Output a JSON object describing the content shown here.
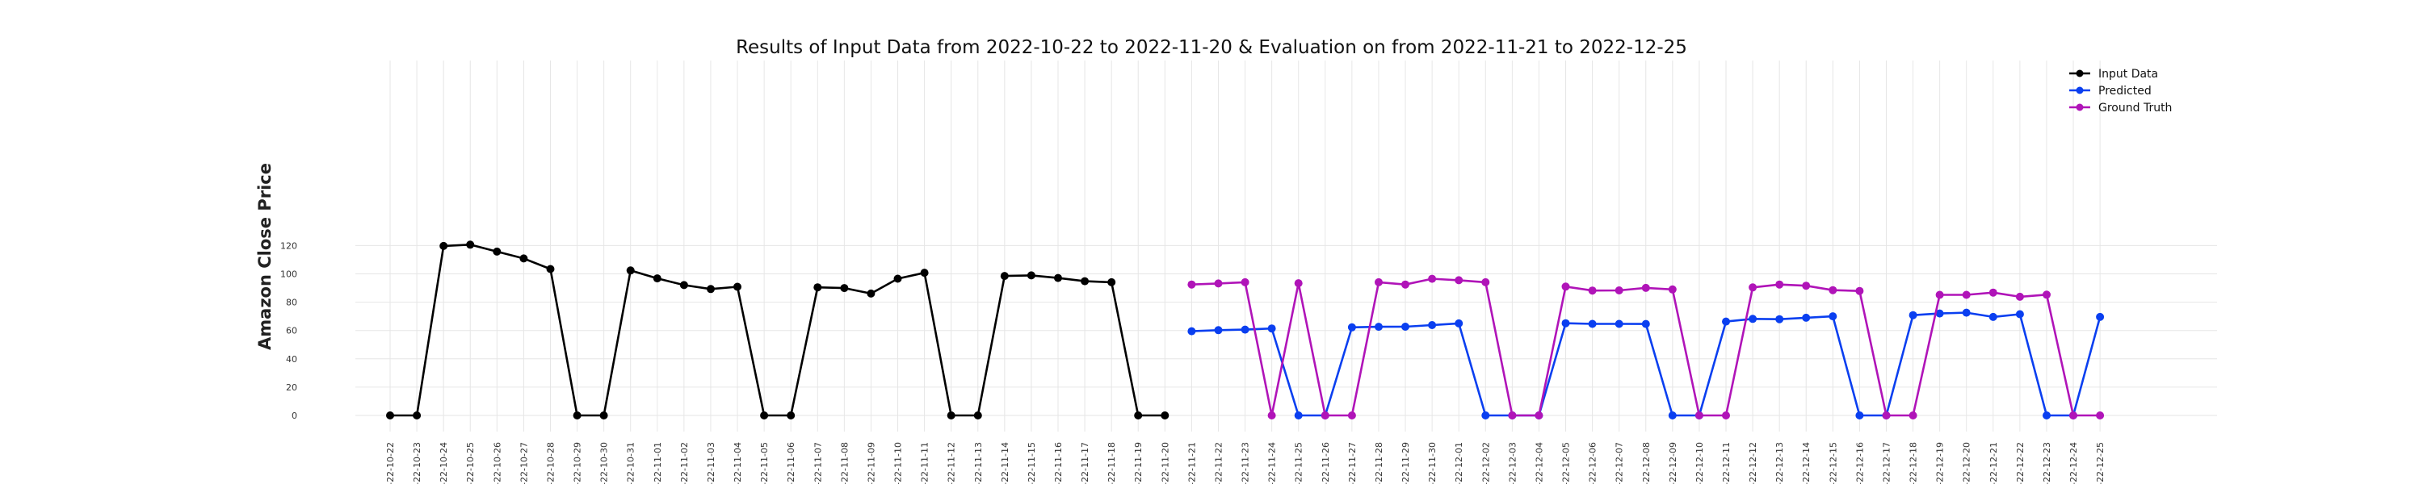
{
  "chart_data": {
    "type": "line",
    "title": "Results of Input Data from 2022-10-22 to 2022-11-20 & Evaluation on from 2022-11-21 to 2022-12-25",
    "xlabel": "",
    "ylabel": "Amazon Close Price",
    "ylim": [
      -5,
      126
    ],
    "yticks": [
      0,
      20,
      40,
      60,
      80,
      100,
      120
    ],
    "grid": true,
    "legend_position": "top-right",
    "x": [
      "2022-10-22",
      "2022-10-23",
      "2022-10-24",
      "2022-10-25",
      "2022-10-26",
      "2022-10-27",
      "2022-10-28",
      "2022-10-29",
      "2022-10-30",
      "2022-10-31",
      "2022-11-01",
      "2022-11-02",
      "2022-11-03",
      "2022-11-04",
      "2022-11-05",
      "2022-11-06",
      "2022-11-07",
      "2022-11-08",
      "2022-11-09",
      "2022-11-10",
      "2022-11-11",
      "2022-11-12",
      "2022-11-13",
      "2022-11-14",
      "2022-11-15",
      "2022-11-16",
      "2022-11-17",
      "2022-11-18",
      "2022-11-19",
      "2022-11-20",
      "2022-11-21",
      "2022-11-22",
      "2022-11-23",
      "2022-11-24",
      "2022-11-25",
      "2022-11-26",
      "2022-11-27",
      "2022-11-28",
      "2022-11-29",
      "2022-11-30",
      "2022-12-01",
      "2022-12-02",
      "2022-12-03",
      "2022-12-04",
      "2022-12-05",
      "2022-12-06",
      "2022-12-07",
      "2022-12-08",
      "2022-12-09",
      "2022-12-10",
      "2022-12-11",
      "2022-12-12",
      "2022-12-13",
      "2022-12-14",
      "2022-12-15",
      "2022-12-16",
      "2022-12-17",
      "2022-12-18",
      "2022-12-19",
      "2022-12-20",
      "2022-12-21",
      "2022-12-22",
      "2022-12-23",
      "2022-12-24",
      "2022-12-25"
    ],
    "x_tick_labels": [
      "-22-10-22",
      "-22-10-23",
      "-22-10-24",
      "-22-10-25",
      "-22-10-26",
      "-22-10-27",
      "-22-10-28",
      "-22-10-29",
      "-22-10-30",
      "-22-10-31",
      "-22-11-01",
      "-22-11-02",
      "-22-11-03",
      "-22-11-04",
      "-22-11-05",
      "-22-11-06",
      "-22-11-07",
      "-22-11-08",
      "-22-11-09",
      "-22-11-10",
      "-22-11-11",
      "-22-11-12",
      "-22-11-13",
      "-22-11-14",
      "-22-11-15",
      "-22-11-16",
      "-22-11-17",
      "-22-11-18",
      "-22-11-19",
      "-22-11-20",
      "-22-11-21",
      "-22-11-22",
      "-22-11-23",
      "-22-11-24",
      "-22-11-25",
      "-22-11-26",
      "-22-11-27",
      "-22-11-28",
      "-22-11-29",
      "-22-11-30",
      "-22-12-01",
      "-22-12-02",
      "-22-12-03",
      "-22-12-04",
      "-22-12-05",
      "-22-12-06",
      "-22-12-07",
      "-22-12-08",
      "-22-12-09",
      "-22-12-10",
      "-22-12-11",
      "-22-12-12",
      "-22-12-13",
      "-22-12-14",
      "-22-12-15",
      "-22-12-16",
      "-22-12-17",
      "-22-12-18",
      "-22-12-19",
      "-22-12-20",
      "-22-12-21",
      "-22-12-22",
      "-22-12-23",
      "-22-12-24",
      "-22-12-25"
    ],
    "series": [
      {
        "name": "Input Data",
        "color": "#000000",
        "x": [
          "2022-10-22",
          "2022-10-23",
          "2022-10-24",
          "2022-10-25",
          "2022-10-26",
          "2022-10-27",
          "2022-10-28",
          "2022-10-29",
          "2022-10-30",
          "2022-10-31",
          "2022-11-01",
          "2022-11-02",
          "2022-11-03",
          "2022-11-04",
          "2022-11-05",
          "2022-11-06",
          "2022-11-07",
          "2022-11-08",
          "2022-11-09",
          "2022-11-10",
          "2022-11-11",
          "2022-11-12",
          "2022-11-13",
          "2022-11-14",
          "2022-11-15",
          "2022-11-16",
          "2022-11-17",
          "2022-11-18",
          "2022-11-19",
          "2022-11-20"
        ],
        "values": [
          0,
          0,
          119.7,
          120.6,
          115.7,
          110.9,
          103.4,
          0,
          0,
          102.4,
          96.8,
          92.1,
          89.3,
          90.9,
          0,
          0,
          90.5,
          90.0,
          86.1,
          96.6,
          100.8,
          0,
          0,
          98.5,
          98.9,
          97.1,
          94.8,
          94.1,
          0,
          0
        ]
      },
      {
        "name": "Predicted",
        "color": "#0a3ff0",
        "x": [
          "2022-11-21",
          "2022-11-22",
          "2022-11-23",
          "2022-11-24",
          "2022-11-25",
          "2022-11-26",
          "2022-11-27",
          "2022-11-28",
          "2022-11-29",
          "2022-11-30",
          "2022-12-01",
          "2022-12-02",
          "2022-12-03",
          "2022-12-04",
          "2022-12-05",
          "2022-12-06",
          "2022-12-07",
          "2022-12-08",
          "2022-12-09",
          "2022-12-10",
          "2022-12-11",
          "2022-12-12",
          "2022-12-13",
          "2022-12-14",
          "2022-12-15",
          "2022-12-16",
          "2022-12-17",
          "2022-12-18",
          "2022-12-19",
          "2022-12-20",
          "2022-12-21",
          "2022-12-22",
          "2022-12-23",
          "2022-12-24",
          "2022-12-25"
        ],
        "values": [
          59.5,
          60.2,
          60.6,
          61.4,
          0,
          0,
          62.2,
          62.6,
          62.7,
          63.8,
          65.0,
          0,
          0,
          0,
          65.1,
          64.7,
          64.7,
          64.6,
          0,
          0,
          66.3,
          68.2,
          68.0,
          69.0,
          70.0,
          0,
          0,
          70.8,
          72.0,
          72.6,
          69.6,
          71.5,
          0,
          0,
          69.6
        ]
      },
      {
        "name": "Ground Truth",
        "color": "#b014b8",
        "x": [
          "2022-11-21",
          "2022-11-22",
          "2022-11-23",
          "2022-11-24",
          "2022-11-25",
          "2022-11-26",
          "2022-11-27",
          "2022-11-28",
          "2022-11-29",
          "2022-11-30",
          "2022-12-01",
          "2022-12-02",
          "2022-12-03",
          "2022-12-04",
          "2022-12-05",
          "2022-12-06",
          "2022-12-07",
          "2022-12-08",
          "2022-12-09",
          "2022-12-10",
          "2022-12-11",
          "2022-12-12",
          "2022-12-13",
          "2022-12-14",
          "2022-12-15",
          "2022-12-16",
          "2022-12-17",
          "2022-12-18",
          "2022-12-19",
          "2022-12-20",
          "2022-12-21",
          "2022-12-22",
          "2022-12-23",
          "2022-12-24",
          "2022-12-25"
        ],
        "values": [
          92.5,
          93.2,
          94.1,
          0,
          93.4,
          0,
          0,
          94.1,
          92.5,
          96.5,
          95.5,
          94.1,
          0,
          0,
          91.0,
          88.2,
          88.3,
          90.1,
          89.0,
          0,
          0,
          90.4,
          92.5,
          91.6,
          88.5,
          87.9,
          0,
          0,
          85.2,
          85.2,
          86.8,
          83.8,
          85.3,
          0,
          0
        ]
      }
    ]
  }
}
